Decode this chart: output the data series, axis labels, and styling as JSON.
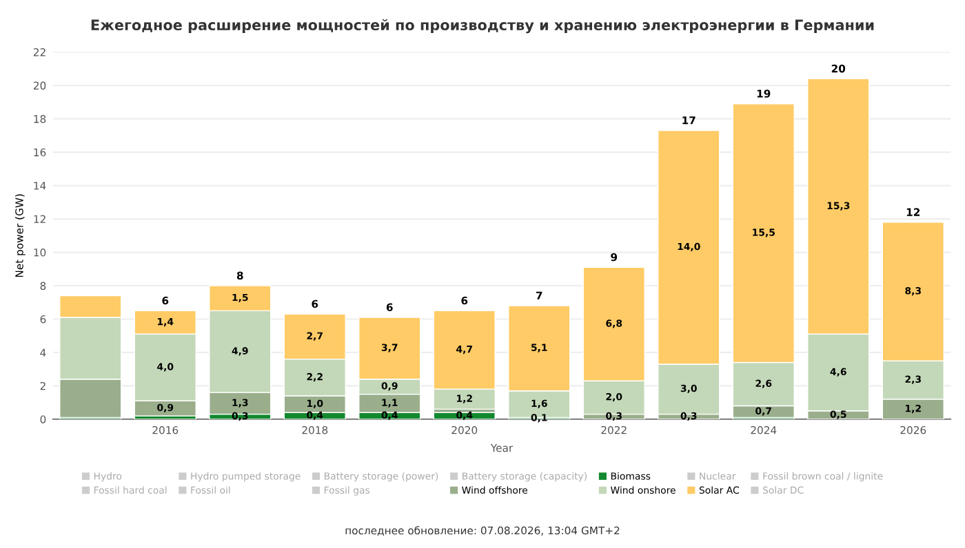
{
  "chart_data": {
    "type": "bar",
    "stacked": true,
    "title": "Ежегодное расширение мощностей по производству и хранению электроэнергии в Германии",
    "xlabel": "Year",
    "ylabel": "Net power (GW)",
    "categories": [
      null,
      "2016",
      null,
      "2018",
      null,
      "2020",
      null,
      "2022",
      null,
      "2024",
      null,
      "2026"
    ],
    "series": [
      {
        "name": "Hydro",
        "color": "#cccccc",
        "values": [
          null,
          null,
          null,
          null,
          null,
          null,
          null,
          null,
          null,
          null,
          null,
          null
        ]
      },
      {
        "name": "Hydro pumped storage",
        "color": "#cccccc",
        "values": [
          null,
          null,
          null,
          null,
          null,
          null,
          null,
          null,
          null,
          null,
          null,
          null
        ]
      },
      {
        "name": "Battery storage (power)",
        "color": "#cccccc",
        "values": [
          null,
          null,
          null,
          null,
          null,
          null,
          null,
          null,
          null,
          null,
          null,
          null
        ]
      },
      {
        "name": "Battery storage (capacity)",
        "color": "#cccccc",
        "values": [
          null,
          null,
          null,
          null,
          null,
          null,
          null,
          null,
          null,
          null,
          null,
          null
        ]
      },
      {
        "name": "Biomass",
        "color": "#13892f",
        "values": [
          0.1,
          0.2,
          0.3,
          0.4,
          0.4,
          0.4,
          0.1,
          0,
          0,
          0.1,
          0,
          0
        ],
        "value_labels": [
          null,
          null,
          "0,3",
          "0,4",
          "0,4",
          "0,4",
          "0,1",
          null,
          null,
          null,
          null,
          null
        ]
      },
      {
        "name": "Nuclear",
        "color": "#cccccc",
        "values": [
          null,
          null,
          null,
          null,
          null,
          null,
          null,
          null,
          null,
          null,
          null,
          null
        ]
      },
      {
        "name": "Fossil brown coal / lignite",
        "color": "#cccccc",
        "values": [
          null,
          null,
          null,
          null,
          null,
          null,
          null,
          null,
          null,
          null,
          null,
          null
        ]
      },
      {
        "name": "Fossil hard coal",
        "color": "#cccccc",
        "values": [
          null,
          null,
          null,
          null,
          null,
          null,
          null,
          null,
          null,
          null,
          null,
          null
        ]
      },
      {
        "name": "Fossil oil",
        "color": "#cccccc",
        "values": [
          null,
          null,
          null,
          null,
          null,
          null,
          null,
          null,
          null,
          null,
          null,
          null
        ]
      },
      {
        "name": "Fossil gas",
        "color": "#cccccc",
        "values": [
          null,
          null,
          null,
          null,
          null,
          null,
          null,
          null,
          null,
          null,
          null,
          null
        ]
      },
      {
        "name": "Wind offshore",
        "color": "#9aae8c",
        "values": [
          2.3,
          0.9,
          1.3,
          1.0,
          1.1,
          0.2,
          0,
          0.3,
          0.3,
          0.7,
          0.5,
          1.2
        ],
        "value_labels": [
          null,
          "0,9",
          "1,3",
          "1,0",
          "1,1",
          null,
          null,
          "0,3",
          "0,3",
          "0,7",
          "0,5",
          "1,2"
        ]
      },
      {
        "name": "Wind onshore",
        "color": "#c3d8b8",
        "values": [
          3.7,
          4.0,
          4.9,
          2.2,
          0.9,
          1.2,
          1.6,
          2.0,
          3.0,
          2.6,
          4.6,
          2.3
        ],
        "value_labels": [
          null,
          "4,0",
          "4,9",
          "2,2",
          "0,9",
          "1,2",
          "1,6",
          "2,0",
          "3,0",
          "2,6",
          "4,6",
          "2,3"
        ]
      },
      {
        "name": "Solar AC",
        "color": "#ffcb66",
        "values": [
          1.3,
          1.4,
          1.5,
          2.7,
          3.7,
          4.7,
          5.1,
          6.8,
          14.0,
          15.5,
          15.3,
          8.3
        ],
        "value_labels": [
          null,
          "1,4",
          "1,5",
          "2,7",
          "3,7",
          "4,7",
          "5,1",
          "6,8",
          "14,0",
          "15,5",
          "15,3",
          "8,3"
        ]
      },
      {
        "name": "Solar DC",
        "color": "#cccccc",
        "values": [
          null,
          null,
          null,
          null,
          null,
          null,
          null,
          null,
          null,
          null,
          null,
          null
        ]
      }
    ],
    "totals": [
      null,
      "6",
      "8",
      "6",
      "6",
      "6",
      "7",
      "9",
      "17",
      "19",
      "20",
      "12"
    ],
    "ylim": [
      0,
      22
    ],
    "yticks": [
      0,
      2,
      4,
      6,
      8,
      10,
      12,
      14,
      16,
      18,
      20,
      22
    ],
    "grid": "y",
    "legend": "bottom",
    "annotations": [
      "последнее обновление: 07.08.2026, 13:04 GMT+2"
    ]
  }
}
